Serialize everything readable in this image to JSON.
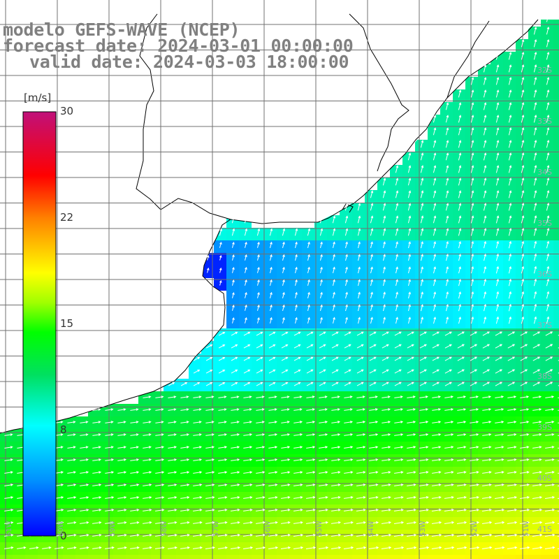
{
  "title": {
    "line1": "modelo GEFS-WAVE (NCEP)",
    "line2": "forecast date: 2024-03-01 00:00:00",
    "line3": "valid date: 2024-03-03 18:00:00"
  },
  "colorbar": {
    "unit": "[m/s]",
    "ticks": [
      "30",
      "22",
      "15",
      "8",
      "0"
    ],
    "tick_values": [
      30,
      22,
      15,
      8,
      0
    ],
    "range": [
      0,
      30
    ]
  },
  "lat_labels": [
    "32S",
    "33S",
    "34S",
    "35S",
    "36S",
    "37S",
    "38S",
    "39S",
    "40S",
    "41S"
  ],
  "lon_labels": [
    "61W",
    "60W",
    "59W",
    "58W",
    "57W",
    "56W",
    "55W",
    "54W",
    "53W",
    "52W",
    "51W"
  ],
  "colors": {
    "land": "#ffffff",
    "coast": "#000000",
    "grid": "#707070"
  }
}
